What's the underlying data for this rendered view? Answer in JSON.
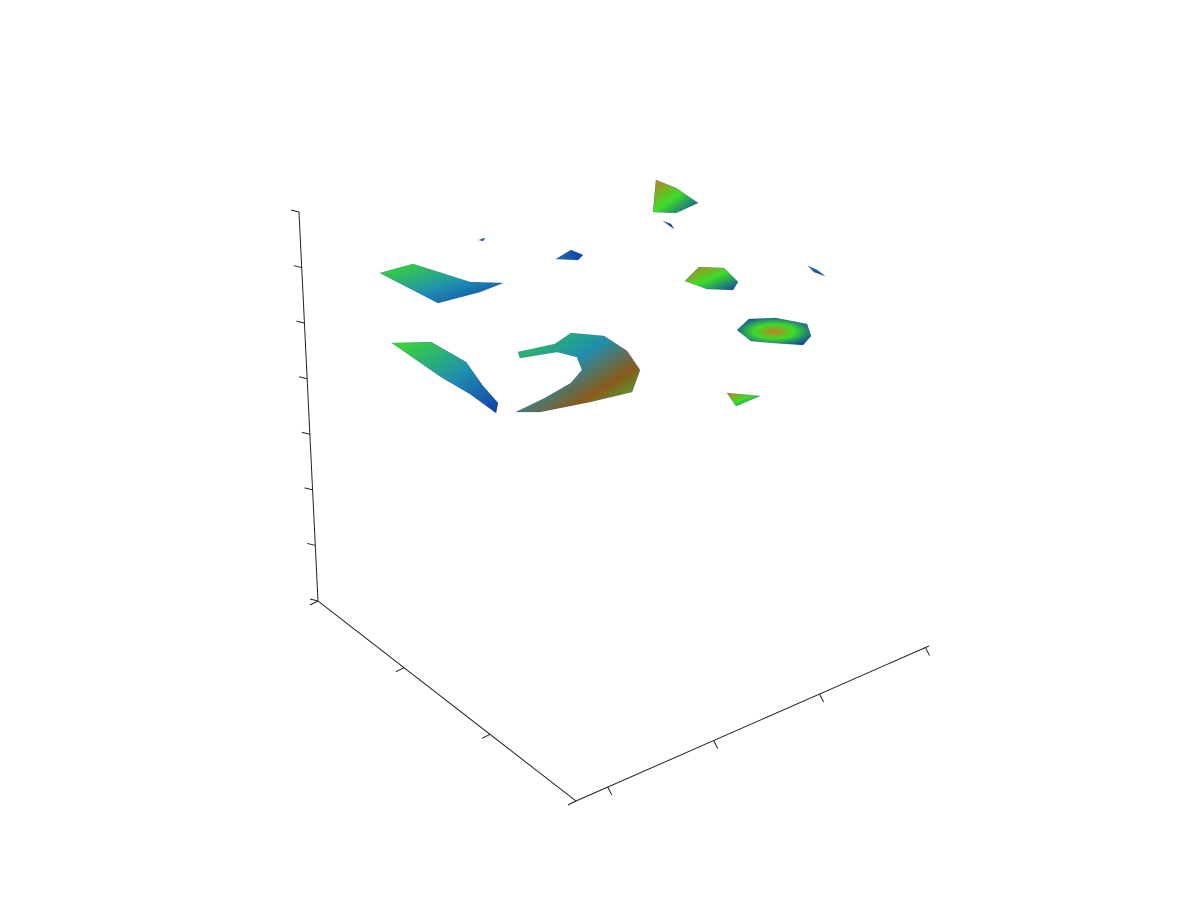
{
  "chart_data": {
    "type": "surface3d",
    "title": "",
    "xlabel": "",
    "ylabel": "",
    "zlabel": "",
    "tick_labels_shown": false,
    "axes": {
      "x_ticks": 3,
      "y_ticks": 4,
      "z_ticks": 8
    },
    "colormap": [
      "#0f3fa8",
      "#1f8fb0",
      "#2ecc40",
      "#3cdc2a",
      "#c08020",
      "#8a5a18"
    ],
    "surface_patches": [
      {
        "name": "patch-left-upper",
        "shading": "green-blue"
      },
      {
        "name": "patch-left-lower",
        "shading": "green-blue"
      },
      {
        "name": "patch-crescent",
        "shading": "green-blue-orange"
      },
      {
        "name": "patch-small-1",
        "shading": "blue"
      },
      {
        "name": "patch-top-triangle",
        "shading": "orange-green"
      },
      {
        "name": "patch-mid-right",
        "shading": "orange-blue"
      },
      {
        "name": "patch-right-blob",
        "shading": "green-orange-blue"
      },
      {
        "name": "patch-small-triangle",
        "shading": "orange-blue"
      },
      {
        "name": "patch-sliver-a",
        "shading": "blue"
      },
      {
        "name": "patch-sliver-b",
        "shading": "blue"
      },
      {
        "name": "patch-sliver-c",
        "shading": "blue"
      }
    ]
  }
}
